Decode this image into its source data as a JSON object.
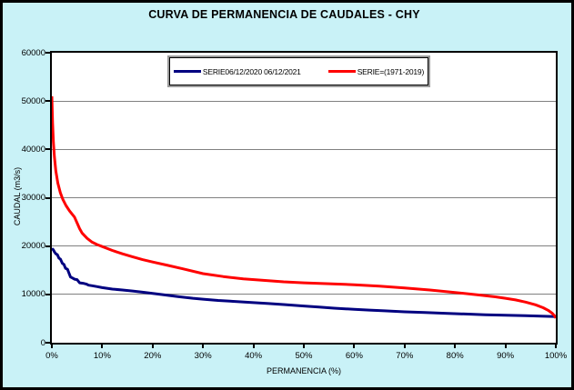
{
  "chart": {
    "title": "CURVA DE PERMANENCIA DE CAUDALES - CHY",
    "x_axis": {
      "label": "PERMANENCIA (%)",
      "ticks": [
        "0%",
        "10%",
        "20%",
        "30%",
        "40%",
        "50%",
        "60%",
        "70%",
        "80%",
        "90%",
        "100%"
      ]
    },
    "y_axis": {
      "label": "CAUDAL (m3/s)",
      "ticks": [
        "0",
        "10000",
        "20000",
        "30000",
        "40000",
        "50000",
        "60000"
      ]
    },
    "legend": [
      {
        "label": "SERIE06/12/2020 06/12/2021",
        "color": "#000080"
      },
      {
        "label": "SERIE=(1971-2019)",
        "color": "#ff0000"
      }
    ],
    "colors": {
      "background": "#c9f2f7",
      "plot_background": "#ffffff",
      "gridline": "#808080"
    }
  },
  "chart_data": {
    "type": "line",
    "title": "CURVA DE PERMANENCIA DE CAUDALES - CHY",
    "xlabel": "PERMANENCIA (%)",
    "ylabel": "CAUDAL (m3/s)",
    "xlim": [
      0,
      100
    ],
    "ylim": [
      0,
      60000
    ],
    "grid": "horizontal-only",
    "legend_position": "top-center-inside",
    "series": [
      {
        "name": "SERIE06/12/2020 06/12/2021",
        "color": "#000080",
        "stroke_width": 3,
        "points": [
          [
            0,
            19500
          ],
          [
            0.3,
            19200
          ],
          [
            0.5,
            18800
          ],
          [
            0.8,
            18400
          ],
          [
            1.1,
            18200
          ],
          [
            1.4,
            17500
          ],
          [
            1.7,
            17300
          ],
          [
            2.1,
            16400
          ],
          [
            2.4,
            16200
          ],
          [
            2.7,
            15400
          ],
          [
            3.1,
            15200
          ],
          [
            3.4,
            14400
          ],
          [
            3.7,
            13600
          ],
          [
            4.1,
            13400
          ],
          [
            4.5,
            13150
          ],
          [
            5,
            13050
          ],
          [
            5.5,
            12400
          ],
          [
            6.2,
            12300
          ],
          [
            6.8,
            12150
          ],
          [
            7.3,
            11900
          ],
          [
            8,
            11800
          ],
          [
            9,
            11600
          ],
          [
            10,
            11400
          ],
          [
            12,
            11100
          ],
          [
            14,
            10900
          ],
          [
            16,
            10700
          ],
          [
            18,
            10450
          ],
          [
            20,
            10200
          ],
          [
            22,
            9950
          ],
          [
            25,
            9550
          ],
          [
            28,
            9200
          ],
          [
            30,
            9000
          ],
          [
            33,
            8750
          ],
          [
            36,
            8550
          ],
          [
            40,
            8300
          ],
          [
            43,
            8100
          ],
          [
            46,
            7900
          ],
          [
            50,
            7600
          ],
          [
            53,
            7400
          ],
          [
            56,
            7150
          ],
          [
            60,
            6900
          ],
          [
            63,
            6750
          ],
          [
            66,
            6600
          ],
          [
            70,
            6400
          ],
          [
            74,
            6250
          ],
          [
            78,
            6100
          ],
          [
            82,
            5950
          ],
          [
            86,
            5800
          ],
          [
            90,
            5680
          ],
          [
            94,
            5580
          ],
          [
            97,
            5500
          ],
          [
            100,
            5400
          ]
        ]
      },
      {
        "name": "SERIE=(1971-2019)",
        "color": "#ff0000",
        "stroke_width": 3,
        "points": [
          [
            0,
            51000
          ],
          [
            0.15,
            45500
          ],
          [
            0.3,
            41500
          ],
          [
            0.5,
            38500
          ],
          [
            0.8,
            35500
          ],
          [
            1.2,
            33000
          ],
          [
            1.7,
            31000
          ],
          [
            2.2,
            29600
          ],
          [
            2.8,
            28400
          ],
          [
            3.5,
            27300
          ],
          [
            4.5,
            26000
          ],
          [
            5,
            24800
          ],
          [
            5.5,
            23600
          ],
          [
            6,
            22700
          ],
          [
            7,
            21600
          ],
          [
            8,
            20800
          ],
          [
            9,
            20300
          ],
          [
            10,
            19900
          ],
          [
            12,
            19100
          ],
          [
            14,
            18400
          ],
          [
            16,
            17800
          ],
          [
            18,
            17200
          ],
          [
            20,
            16700
          ],
          [
            23,
            16000
          ],
          [
            26,
            15300
          ],
          [
            30,
            14300
          ],
          [
            34,
            13700
          ],
          [
            38,
            13200
          ],
          [
            42,
            12900
          ],
          [
            46,
            12600
          ],
          [
            50,
            12400
          ],
          [
            55,
            12200
          ],
          [
            60,
            12000
          ],
          [
            65,
            11700
          ],
          [
            70,
            11350
          ],
          [
            75,
            10900
          ],
          [
            80,
            10400
          ],
          [
            85,
            9850
          ],
          [
            88,
            9500
          ],
          [
            90,
            9200
          ],
          [
            92,
            8850
          ],
          [
            94,
            8400
          ],
          [
            96,
            7850
          ],
          [
            97.5,
            7250
          ],
          [
            98.5,
            6700
          ],
          [
            99.3,
            6100
          ],
          [
            99.8,
            5500
          ],
          [
            100,
            5100
          ]
        ]
      }
    ]
  }
}
